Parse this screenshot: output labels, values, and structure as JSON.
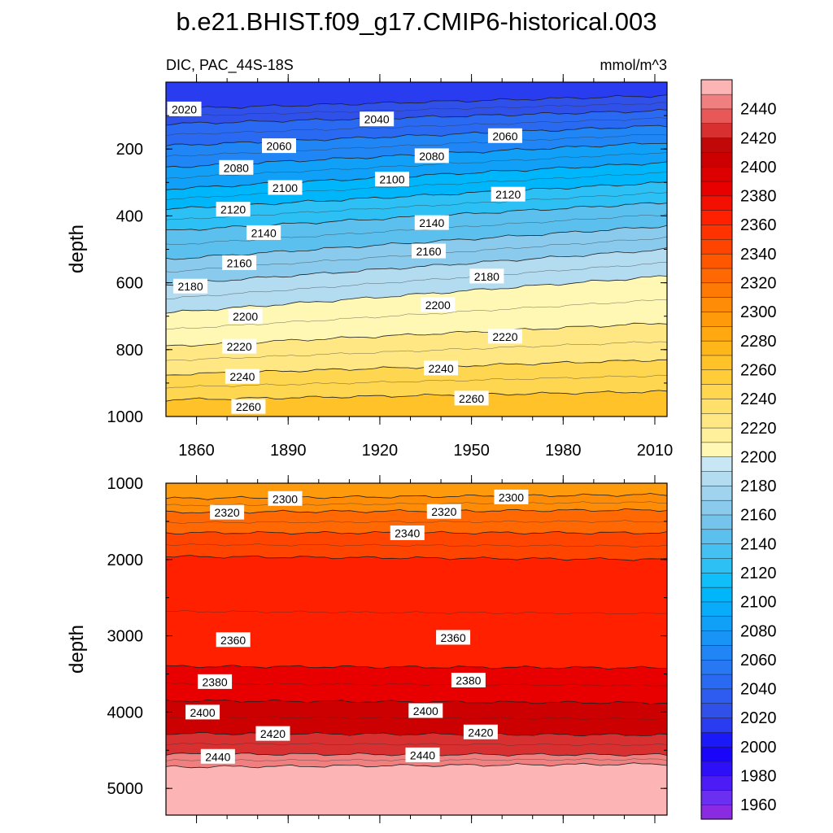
{
  "title": "b.e21.BHIST.f09_g17.CMIP6-historical.003",
  "chart_data": {
    "type": "contour",
    "variable_label": "DIC, PAC_44S-18S",
    "units": "mmol/m^3",
    "x_axis": {
      "range": [
        1850,
        2014
      ],
      "ticks": [
        1860,
        1890,
        1920,
        1950,
        1980,
        2010
      ]
    },
    "upper_panel": {
      "ylabel": "depth",
      "yrange": [
        0,
        1000
      ],
      "yticks": [
        200,
        400,
        600,
        800,
        1000
      ],
      "contours": [
        {
          "level": 2020,
          "depth_start": 80,
          "depth_end": 40
        },
        {
          "level": 2040,
          "depth_start": 125,
          "depth_end": 85
        },
        {
          "level": 2060,
          "depth_start": 190,
          "depth_end": 130
        },
        {
          "level": 2080,
          "depth_start": 255,
          "depth_end": 180
        },
        {
          "level": 2100,
          "depth_start": 320,
          "depth_end": 240
        },
        {
          "level": 2120,
          "depth_start": 380,
          "depth_end": 300
        },
        {
          "level": 2140,
          "depth_start": 445,
          "depth_end": 360
        },
        {
          "level": 2160,
          "depth_start": 530,
          "depth_end": 430
        },
        {
          "level": 2180,
          "depth_start": 605,
          "depth_end": 500
        },
        {
          "level": 2200,
          "depth_start": 690,
          "depth_end": 580
        },
        {
          "level": 2220,
          "depth_start": 790,
          "depth_end": 720
        },
        {
          "level": 2240,
          "depth_start": 875,
          "depth_end": 830
        },
        {
          "level": 2260,
          "depth_start": 950,
          "depth_end": 925
        }
      ],
      "labels": [
        {
          "text": "2020",
          "x": 1856,
          "depth": 80
        },
        {
          "text": "2040",
          "x": 1919,
          "depth": 110
        },
        {
          "text": "2060",
          "x": 1887,
          "depth": 190
        },
        {
          "text": "2060",
          "x": 1961,
          "depth": 160
        },
        {
          "text": "2080",
          "x": 1873,
          "depth": 255
        },
        {
          "text": "2080",
          "x": 1937,
          "depth": 220
        },
        {
          "text": "2100",
          "x": 1889,
          "depth": 315
        },
        {
          "text": "2100",
          "x": 1924,
          "depth": 290
        },
        {
          "text": "2120",
          "x": 1872,
          "depth": 380
        },
        {
          "text": "2120",
          "x": 1962,
          "depth": 335
        },
        {
          "text": "2140",
          "x": 1882,
          "depth": 450
        },
        {
          "text": "2140",
          "x": 1937,
          "depth": 420
        },
        {
          "text": "2160",
          "x": 1874,
          "depth": 540
        },
        {
          "text": "2160",
          "x": 1936,
          "depth": 505
        },
        {
          "text": "2180",
          "x": 1858,
          "depth": 610
        },
        {
          "text": "2180",
          "x": 1955,
          "depth": 580
        },
        {
          "text": "2200",
          "x": 1876,
          "depth": 700
        },
        {
          "text": "2200",
          "x": 1939,
          "depth": 665
        },
        {
          "text": "2220",
          "x": 1874,
          "depth": 790
        },
        {
          "text": "2220",
          "x": 1961,
          "depth": 760
        },
        {
          "text": "2240",
          "x": 1875,
          "depth": 880
        },
        {
          "text": "2240",
          "x": 1940,
          "depth": 855
        },
        {
          "text": "2260",
          "x": 1877,
          "depth": 970
        },
        {
          "text": "2260",
          "x": 1950,
          "depth": 945
        }
      ]
    },
    "lower_panel": {
      "ylabel": "depth",
      "yrange": [
        1000,
        5350
      ],
      "yticks": [
        1000,
        2000,
        3000,
        4000,
        5000
      ],
      "contours": [
        {
          "level": 2300,
          "depth_start": 1200,
          "depth_end": 1150
        },
        {
          "level": 2320,
          "depth_start": 1380,
          "depth_end": 1350
        },
        {
          "level": 2340,
          "depth_start": 1650,
          "depth_end": 1650
        },
        {
          "level": 2360,
          "depth_start": 1960,
          "depth_end": 2000
        },
        {
          "level": 2380,
          "depth_start": 3400,
          "depth_end": 3420
        },
        {
          "level": 2400,
          "depth_start": 3850,
          "depth_end": 3880
        },
        {
          "level": 2420,
          "depth_start": 4280,
          "depth_end": 4300
        },
        {
          "level": 2440,
          "depth_start": 4550,
          "depth_end": 4560
        },
        {
          "level": 2460,
          "depth_start": 4720,
          "depth_end": 4680
        }
      ],
      "labels": [
        {
          "text": "2300",
          "x": 1889,
          "depth": 1200
        },
        {
          "text": "2300",
          "x": 1963,
          "depth": 1180
        },
        {
          "text": "2320",
          "x": 1870,
          "depth": 1380
        },
        {
          "text": "2320",
          "x": 1941,
          "depth": 1370
        },
        {
          "text": "2340",
          "x": 1929,
          "depth": 1650
        },
        {
          "text": "2360",
          "x": 1872,
          "depth": 3050
        },
        {
          "text": "2360",
          "x": 1944,
          "depth": 3020
        },
        {
          "text": "2380",
          "x": 1866,
          "depth": 3600
        },
        {
          "text": "2380",
          "x": 1949,
          "depth": 3580
        },
        {
          "text": "2400",
          "x": 1862,
          "depth": 4000
        },
        {
          "text": "2400",
          "x": 1935,
          "depth": 3980
        },
        {
          "text": "2420",
          "x": 1885,
          "depth": 4280
        },
        {
          "text": "2420",
          "x": 1953,
          "depth": 4260
        },
        {
          "text": "2440",
          "x": 1867,
          "depth": 4580
        },
        {
          "text": "2440",
          "x": 1934,
          "depth": 4560
        }
      ]
    },
    "colorbar": {
      "labels": [
        1960,
        1980,
        2000,
        2020,
        2040,
        2060,
        2080,
        2100,
        2120,
        2140,
        2160,
        2180,
        2200,
        2220,
        2240,
        2260,
        2280,
        2300,
        2320,
        2340,
        2360,
        2380,
        2400,
        2420,
        2440
      ],
      "bands": [
        {
          "from": 1950,
          "to": 1960,
          "color": "#8a2be2"
        },
        {
          "from": 1960,
          "to": 1970,
          "color": "#6a2ff0"
        },
        {
          "from": 1970,
          "to": 1980,
          "color": "#4b1cf5"
        },
        {
          "from": 1980,
          "to": 1990,
          "color": "#2d10f7"
        },
        {
          "from": 1990,
          "to": 2000,
          "color": "#1a05fb"
        },
        {
          "from": 2000,
          "to": 2010,
          "color": "#1a1af8"
        },
        {
          "from": 2010,
          "to": 2020,
          "color": "#2a3cf0"
        },
        {
          "from": 2020,
          "to": 2030,
          "color": "#3050ea"
        },
        {
          "from": 2030,
          "to": 2040,
          "color": "#2e5cf0"
        },
        {
          "from": 2040,
          "to": 2050,
          "color": "#2a6af2"
        },
        {
          "from": 2050,
          "to": 2060,
          "color": "#2878f4"
        },
        {
          "from": 2060,
          "to": 2070,
          "color": "#2086f6"
        },
        {
          "from": 2070,
          "to": 2080,
          "color": "#1894f7"
        },
        {
          "from": 2080,
          "to": 2090,
          "color": "#10a0f8"
        },
        {
          "from": 2090,
          "to": 2100,
          "color": "#08acfa"
        },
        {
          "from": 2100,
          "to": 2110,
          "color": "#00b6fb"
        },
        {
          "from": 2110,
          "to": 2120,
          "color": "#10befa"
        },
        {
          "from": 2120,
          "to": 2130,
          "color": "#2cc0f5"
        },
        {
          "from": 2130,
          "to": 2140,
          "color": "#44c0f2"
        },
        {
          "from": 2140,
          "to": 2150,
          "color": "#5cc0ee"
        },
        {
          "from": 2150,
          "to": 2160,
          "color": "#74c4ec"
        },
        {
          "from": 2160,
          "to": 2170,
          "color": "#8acaec"
        },
        {
          "from": 2170,
          "to": 2180,
          "color": "#a0d4ee"
        },
        {
          "from": 2180,
          "to": 2190,
          "color": "#b4dcf0"
        },
        {
          "from": 2190,
          "to": 2200,
          "color": "#c8e6f4"
        },
        {
          "from": 2200,
          "to": 2210,
          "color": "#fff8b4"
        },
        {
          "from": 2210,
          "to": 2220,
          "color": "#fff09c"
        },
        {
          "from": 2220,
          "to": 2230,
          "color": "#ffe884"
        },
        {
          "from": 2230,
          "to": 2240,
          "color": "#ffe06a"
        },
        {
          "from": 2240,
          "to": 2250,
          "color": "#ffd650"
        },
        {
          "from": 2250,
          "to": 2260,
          "color": "#ffcc3a"
        },
        {
          "from": 2260,
          "to": 2270,
          "color": "#ffc228"
        },
        {
          "from": 2270,
          "to": 2280,
          "color": "#ffb618"
        },
        {
          "from": 2280,
          "to": 2290,
          "color": "#ffa810"
        },
        {
          "from": 2290,
          "to": 2300,
          "color": "#ff9a0a"
        },
        {
          "from": 2300,
          "to": 2310,
          "color": "#ff8c06"
        },
        {
          "from": 2310,
          "to": 2320,
          "color": "#ff7a04"
        },
        {
          "from": 2320,
          "to": 2330,
          "color": "#ff6802"
        },
        {
          "from": 2330,
          "to": 2340,
          "color": "#ff5600"
        },
        {
          "from": 2340,
          "to": 2350,
          "color": "#ff4400"
        },
        {
          "from": 2350,
          "to": 2360,
          "color": "#ff3200"
        },
        {
          "from": 2360,
          "to": 2370,
          "color": "#ff2000"
        },
        {
          "from": 2370,
          "to": 2380,
          "color": "#f41000"
        },
        {
          "from": 2380,
          "to": 2390,
          "color": "#e80000"
        },
        {
          "from": 2390,
          "to": 2400,
          "color": "#dc0000"
        },
        {
          "from": 2400,
          "to": 2410,
          "color": "#cc0000"
        },
        {
          "from": 2410,
          "to": 2420,
          "color": "#c00808"
        },
        {
          "from": 2420,
          "to": 2430,
          "color": "#d83030"
        },
        {
          "from": 2430,
          "to": 2440,
          "color": "#e85858"
        },
        {
          "from": 2440,
          "to": 2450,
          "color": "#f08080"
        },
        {
          "from": 2450,
          "to": 2460,
          "color": "#fcb4b4"
        }
      ]
    }
  }
}
